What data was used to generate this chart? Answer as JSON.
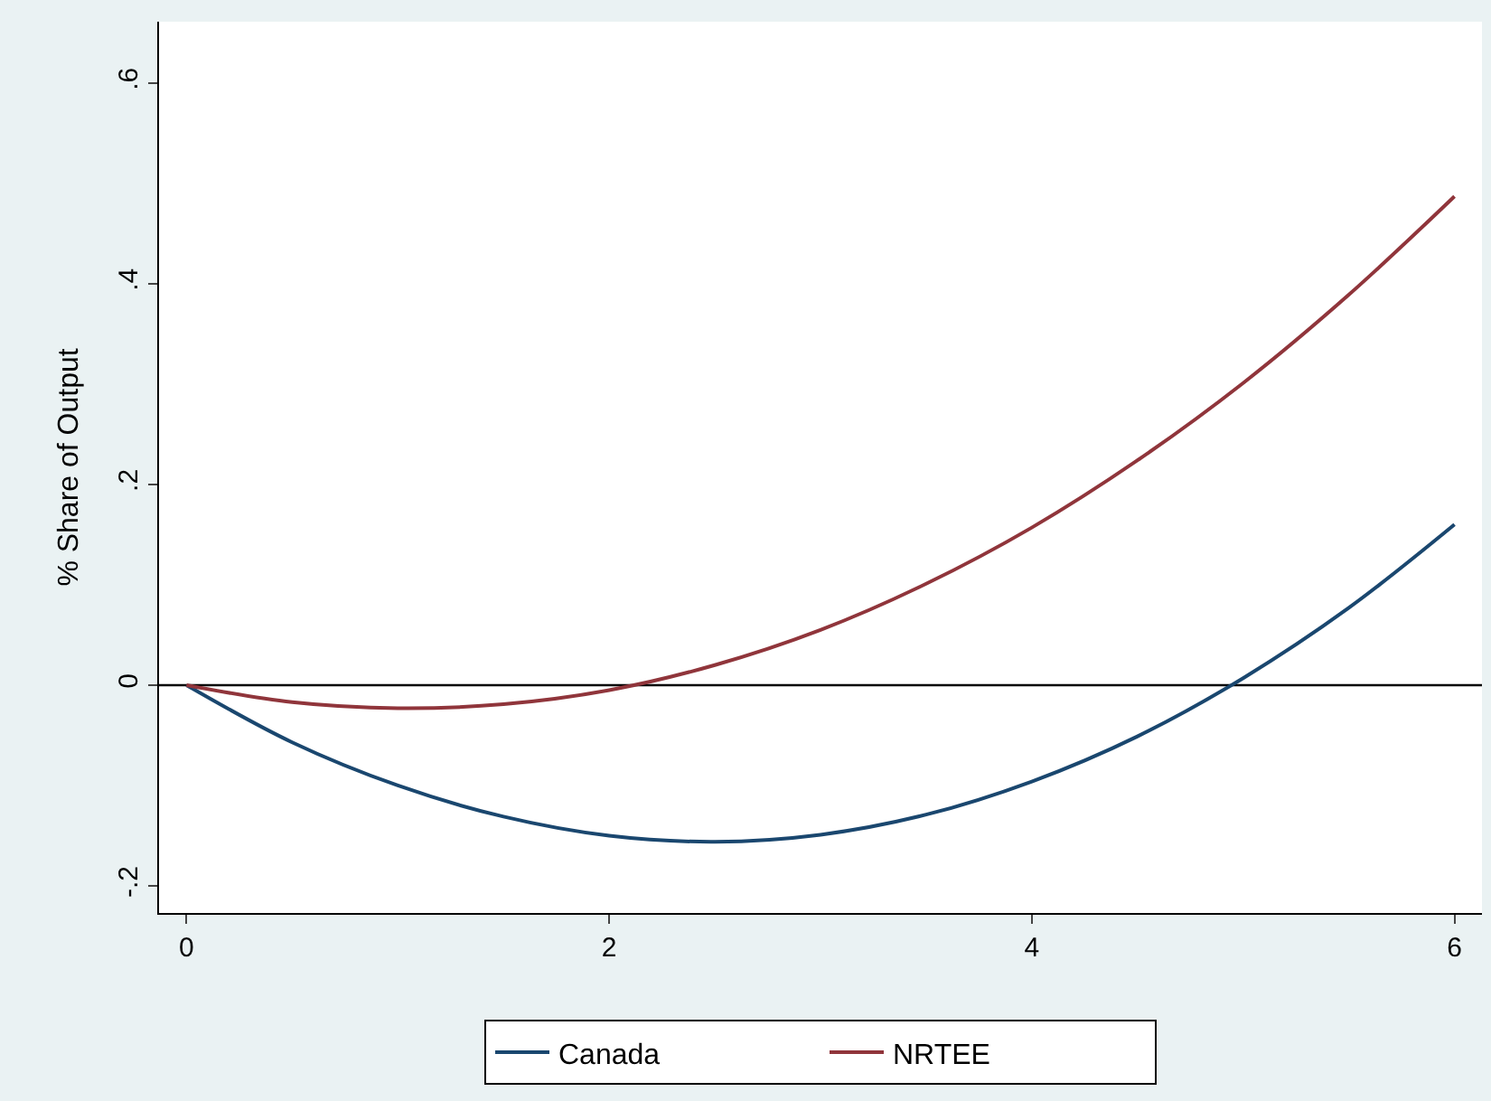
{
  "chart_data": {
    "type": "line",
    "ylabel": "% Share of Output",
    "x": [
      0,
      0.5,
      1,
      1.5,
      2,
      2.5,
      3,
      3.5,
      4,
      4.5,
      5,
      5.5,
      6
    ],
    "series": [
      {
        "name": "Canada",
        "color": "#1a476f",
        "values": [
          0,
          -0.057,
          -0.1,
          -0.131,
          -0.15,
          -0.156,
          -0.149,
          -0.129,
          -0.096,
          -0.051,
          0.007,
          0.077,
          0.16
        ]
      },
      {
        "name": "NRTEE",
        "color": "#90353b",
        "values": [
          0,
          -0.017,
          -0.023,
          -0.019,
          -0.005,
          0.02,
          0.055,
          0.101,
          0.157,
          0.224,
          0.301,
          0.389,
          0.487
        ]
      }
    ],
    "xlim": [
      -0.13,
      6.13
    ],
    "xticks": [
      0,
      2,
      4,
      6
    ],
    "ylim": [
      -0.227,
      0.661
    ],
    "yticks": [
      {
        "value": -0.2,
        "label": "-.2"
      },
      0,
      {
        "value": 0.2,
        "label": ".2"
      },
      {
        "value": 0.4,
        "label": ".4"
      },
      {
        "value": 0.6,
        "label": ".6"
      }
    ],
    "ref_lines": [
      {
        "axis": "y",
        "value": 0,
        "color": "#000000"
      }
    ],
    "grid": false,
    "legend": "bottom",
    "line_style": "solid",
    "marker": "none"
  }
}
